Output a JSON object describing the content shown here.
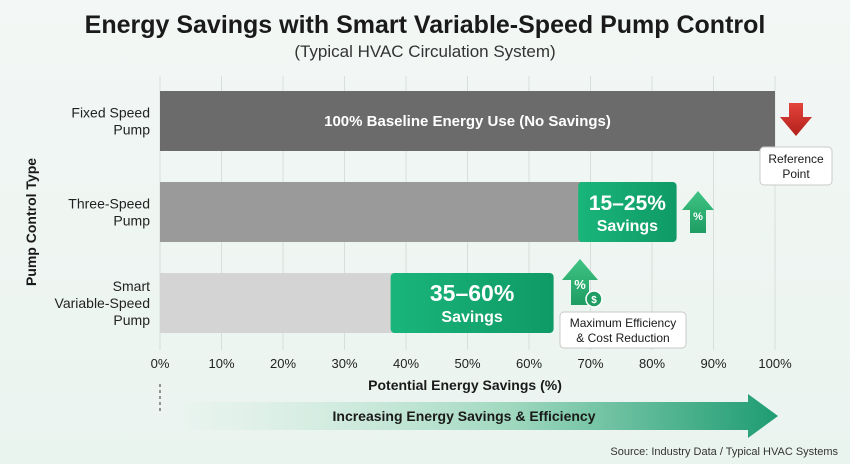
{
  "chart_data": {
    "type": "bar",
    "orientation": "horizontal",
    "title": "Energy Savings with Smart Variable-Speed Pump Control",
    "subtitle": "(Typical HVAC Circulation System)",
    "ylabel": "Pump Control Type",
    "xlabel": "Potential Energy Savings (%)",
    "xlim": [
      0,
      100
    ],
    "ticks": [
      "0%",
      "10%",
      "20%",
      "30%",
      "40%",
      "50%",
      "60%",
      "70%",
      "80%",
      "90%",
      "100%"
    ],
    "tick_values": [
      0,
      10,
      20,
      30,
      40,
      50,
      60,
      70,
      80,
      90,
      100
    ],
    "grid": true,
    "categories": [
      {
        "label_lines": [
          "Fixed Speed",
          "Pump"
        ],
        "bar_end": 100,
        "savings_start": null,
        "bar_color": "#6b6b6b",
        "bar_label": "100% Baseline Energy Use (No Savings)",
        "savings_label_lines": [],
        "savings_color": null
      },
      {
        "label_lines": [
          "Three-Speed",
          "Pump"
        ],
        "bar_end": 84,
        "savings_start": 68,
        "bar_color": "#9a9a9a",
        "bar_label": "",
        "savings_label_lines": [
          "15–25%",
          "Savings"
        ],
        "savings_color": "#2bb673"
      },
      {
        "label_lines": [
          "Smart",
          "Variable-Speed",
          "Pump"
        ],
        "bar_end": 64,
        "savings_start": 37.5,
        "bar_color": "#d4d4d4",
        "bar_label": "",
        "savings_label_lines": [
          "35–60%",
          "Savings"
        ],
        "savings_color": "#15b57a"
      }
    ],
    "annotations": [
      {
        "icon": "down-arrow-icon",
        "color": "#d9312b",
        "lines": [
          "Reference",
          "Point"
        ]
      },
      {
        "icon": "percent-up-arrow-icon",
        "color": "#2bb673",
        "text": "%"
      },
      {
        "icon": "percent-dollar-up-arrow-icon",
        "color": "#2bb673",
        "text": "%",
        "badge": "$",
        "lines": [
          "Maximum Efficiency",
          "& Cost Reduction"
        ]
      }
    ],
    "bottom_band": "Increasing Energy Savings & Efficiency",
    "source": "Source: Industry Data / Typical HVAC Systems"
  }
}
